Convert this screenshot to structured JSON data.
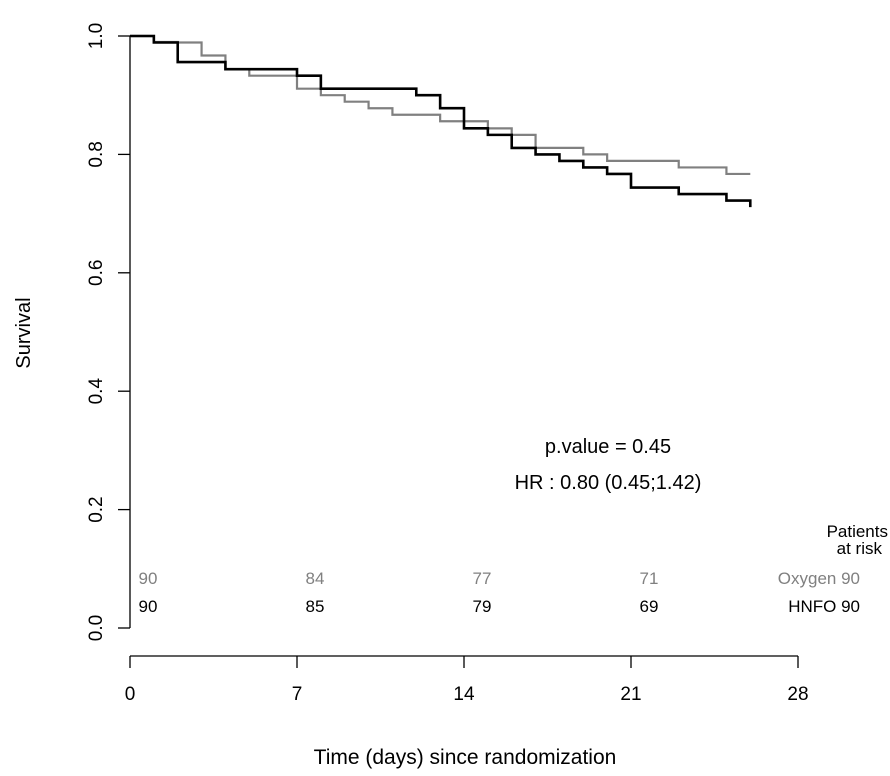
{
  "chart_data": {
    "type": "line",
    "title": "",
    "xlabel": "Time (days) since randomization",
    "ylabel": "Survival",
    "xlim": [
      0,
      28
    ],
    "ylim": [
      0,
      1
    ],
    "x_ticks": [
      0,
      7,
      14,
      21,
      28
    ],
    "y_ticks": [
      0.0,
      0.2,
      0.4,
      0.6,
      0.8,
      1.0
    ],
    "x_tick_labels": [
      "0",
      "7",
      "14",
      "21",
      "28"
    ],
    "y_tick_labels": [
      "0.0",
      "0.2",
      "0.4",
      "0.6",
      "0.8",
      "1.0"
    ],
    "grid": false,
    "series": [
      {
        "name": "Oxygen",
        "color": "#808080",
        "step": true,
        "x": [
          0,
          1,
          2,
          3,
          4,
          5,
          7,
          8,
          9,
          10,
          11,
          13,
          15,
          16,
          17,
          19,
          20,
          21,
          23,
          25,
          26
        ],
        "y": [
          1.0,
          0.99,
          0.989,
          0.967,
          0.944,
          0.933,
          0.911,
          0.9,
          0.889,
          0.878,
          0.867,
          0.856,
          0.844,
          0.833,
          0.811,
          0.8,
          0.789,
          0.789,
          0.778,
          0.767,
          0.767
        ]
      },
      {
        "name": "HNFO",
        "color": "#000000",
        "step": true,
        "x": [
          0,
          1,
          2,
          4,
          7,
          8,
          12,
          13,
          14,
          15,
          16,
          17,
          18,
          19,
          20,
          21,
          23,
          25,
          26
        ],
        "y": [
          1.0,
          0.989,
          0.956,
          0.944,
          0.933,
          0.911,
          0.9,
          0.878,
          0.844,
          0.833,
          0.811,
          0.8,
          0.789,
          0.778,
          0.767,
          0.744,
          0.733,
          0.722,
          0.711
        ]
      }
    ],
    "annotations": [
      {
        "text": "p.value = 0.45"
      },
      {
        "text": "HR : 0.80 (0.45;1.42)"
      }
    ],
    "risk_table": {
      "header": [
        "Patients",
        "at risk"
      ],
      "times": [
        0,
        7,
        14,
        21
      ],
      "rows": [
        {
          "label": "Oxygen",
          "total": "90",
          "color": "#808080",
          "values": [
            "90",
            "84",
            "77",
            "71"
          ]
        },
        {
          "label": "HNFO",
          "total": "90",
          "color": "#000000",
          "values": [
            "90",
            "85",
            "79",
            "69"
          ]
        }
      ]
    }
  }
}
